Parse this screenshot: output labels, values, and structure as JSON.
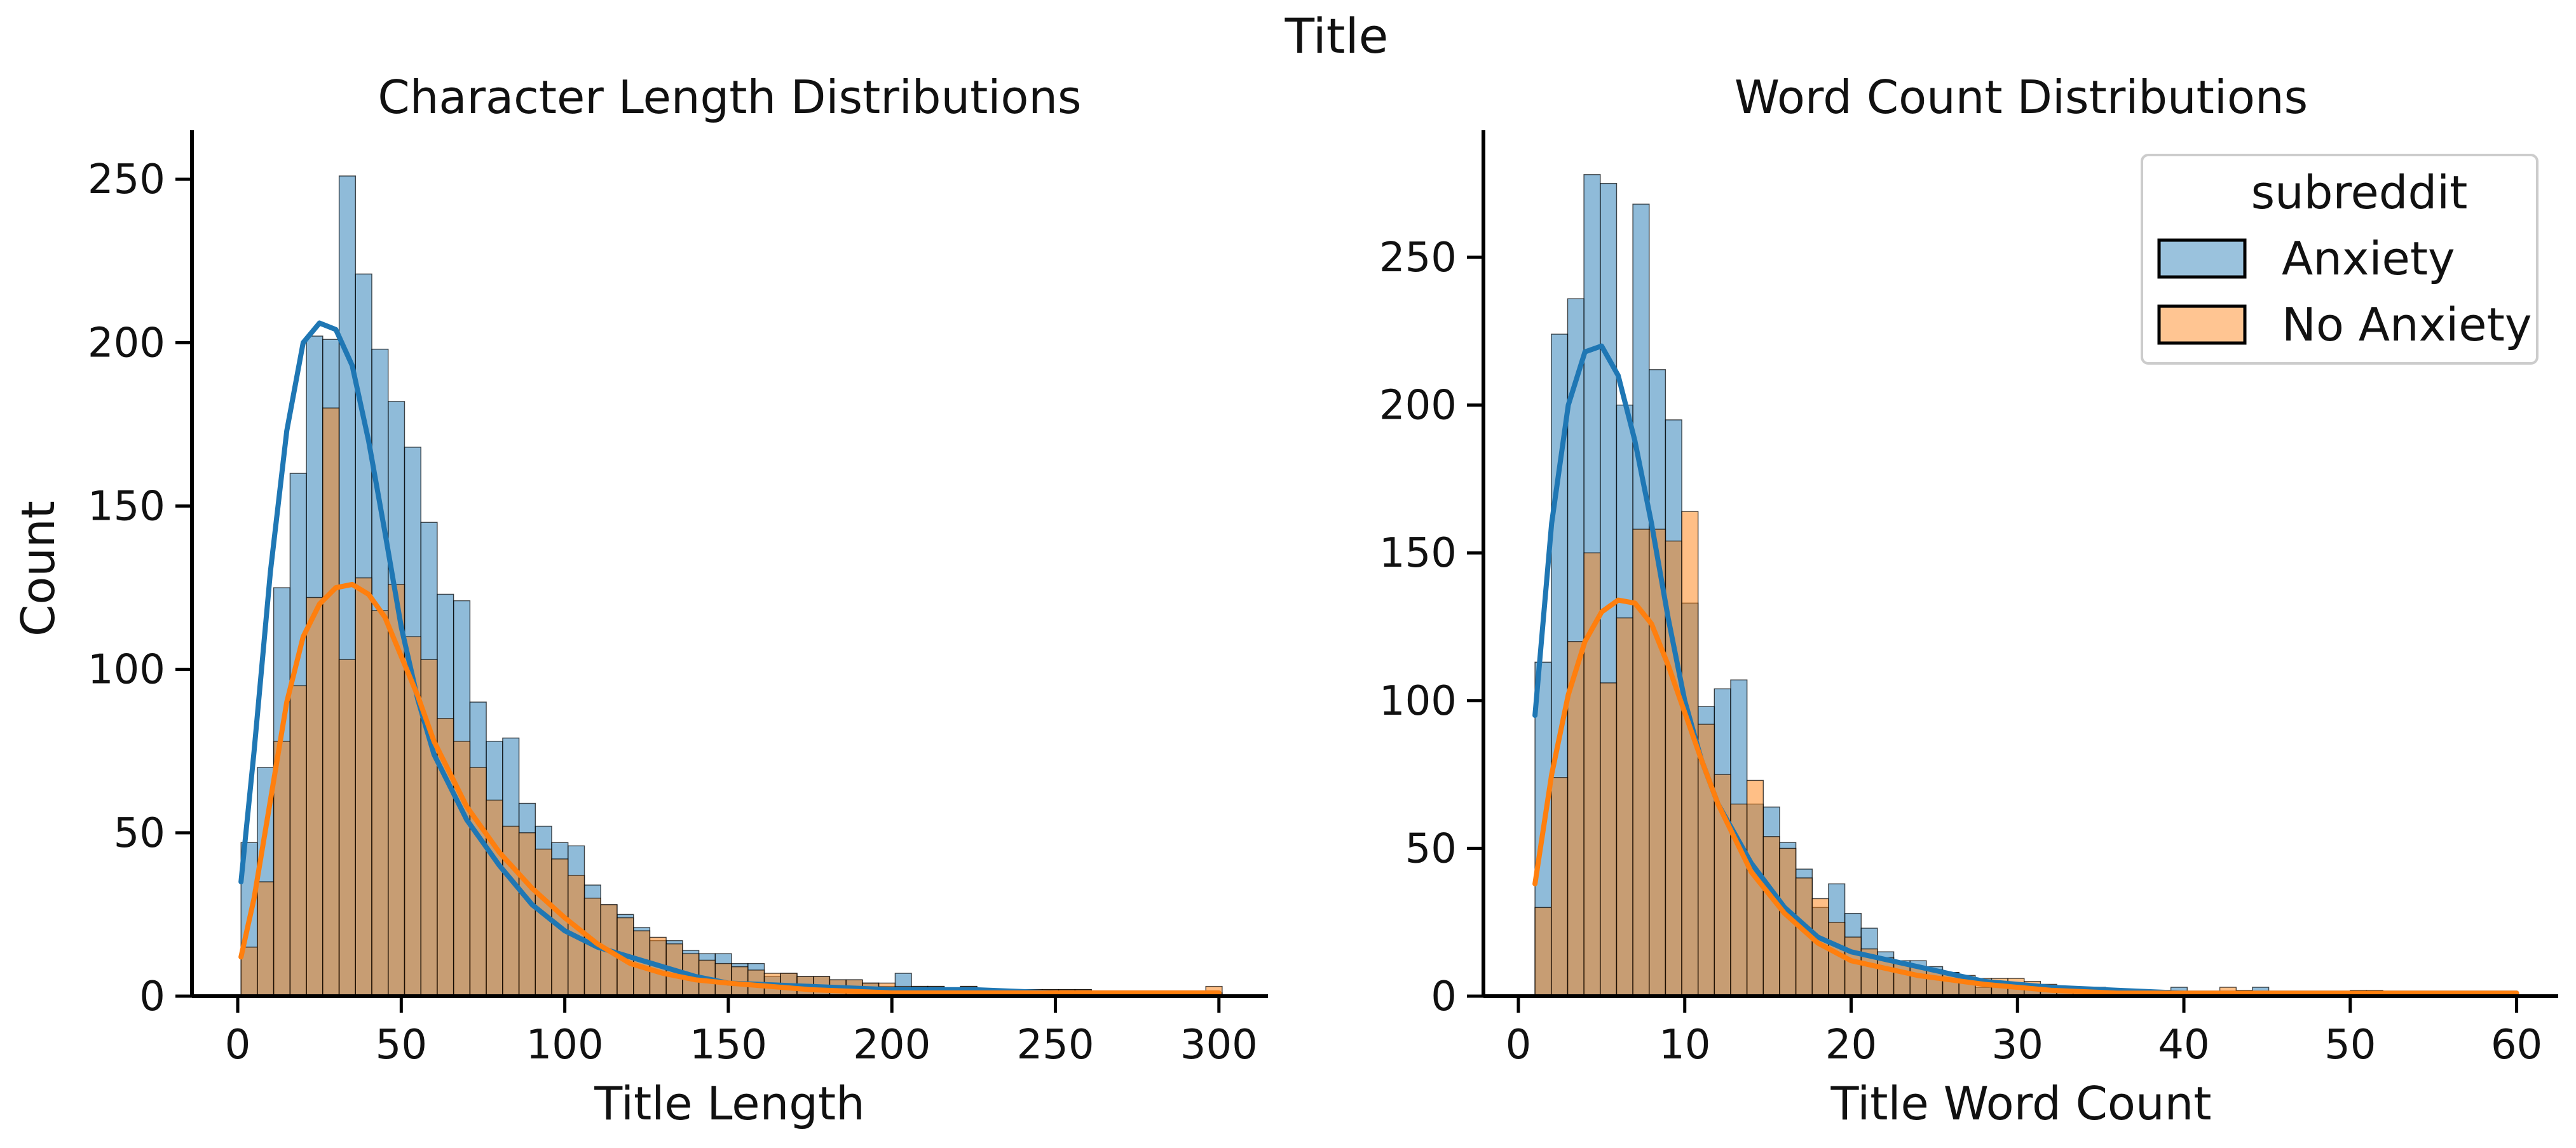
{
  "figure": {
    "suptitle": "Title"
  },
  "colors": {
    "anxiety": "#1f77b4",
    "no_anxiety": "#ff7f0e",
    "overlap": "#7d8b8e"
  },
  "legend": {
    "title": "subreddit",
    "entries": [
      {
        "label": "Anxiety",
        "color": "#1f77b4"
      },
      {
        "label": "No Anxiety",
        "color": "#ff7f0e"
      }
    ],
    "placement": "upper-right of right panel"
  },
  "chart_data": [
    {
      "type": "histogram",
      "title": "Character Length Distributions",
      "xlabel": "Title Length",
      "ylabel": "Count",
      "xlim": [
        -14,
        315
      ],
      "ylim": [
        0,
        265
      ],
      "xticks": [
        0,
        50,
        100,
        150,
        200,
        250,
        300
      ],
      "yticks": [
        0,
        50,
        100,
        150,
        200,
        250
      ],
      "bin_edges_start": 1,
      "bin_width": 5,
      "series": [
        {
          "name": "Anxiety",
          "counts": [
            47,
            70,
            125,
            160,
            202,
            201,
            251,
            221,
            198,
            182,
            168,
            145,
            123,
            121,
            90,
            78,
            79,
            59,
            52,
            47,
            46,
            34,
            28,
            25,
            21,
            17,
            17,
            14,
            13,
            13,
            10,
            10,
            6,
            7,
            6,
            6,
            5,
            5,
            4,
            3,
            7,
            3,
            3,
            2,
            3,
            2,
            2,
            2,
            2,
            2,
            2,
            2,
            1,
            1,
            1,
            1,
            1,
            1,
            1,
            1
          ],
          "kde_x": [
            1,
            5,
            10,
            15,
            20,
            25,
            30,
            35,
            40,
            45,
            50,
            55,
            60,
            70,
            80,
            90,
            100,
            110,
            120,
            130,
            140,
            150,
            175,
            200,
            225,
            250,
            275,
            300
          ],
          "kde_y": [
            35,
            75,
            130,
            173,
            200,
            206,
            204,
            193,
            170,
            142,
            113,
            91,
            74,
            54,
            40,
            28,
            20,
            15,
            12,
            9,
            6,
            4,
            3,
            2,
            2,
            1,
            1,
            1
          ]
        },
        {
          "name": "No Anxiety",
          "counts": [
            15,
            35,
            78,
            95,
            122,
            180,
            103,
            128,
            118,
            126,
            110,
            103,
            85,
            78,
            70,
            60,
            52,
            50,
            45,
            42,
            37,
            30,
            28,
            24,
            20,
            18,
            16,
            13,
            11,
            10,
            9,
            8,
            7,
            7,
            6,
            6,
            5,
            5,
            4,
            4,
            3,
            3,
            3,
            2,
            3,
            2,
            2,
            2,
            2,
            2,
            2,
            2,
            1,
            1,
            1,
            1,
            1,
            1,
            1,
            3
          ],
          "kde_x": [
            1,
            5,
            10,
            15,
            20,
            25,
            30,
            35,
            40,
            45,
            50,
            55,
            60,
            70,
            80,
            90,
            100,
            110,
            120,
            130,
            140,
            150,
            175,
            200,
            225,
            250,
            275,
            300
          ],
          "kde_y": [
            12,
            30,
            60,
            90,
            110,
            120,
            125,
            126,
            123,
            116,
            104,
            92,
            78,
            58,
            44,
            33,
            24,
            16,
            10,
            7,
            5,
            4,
            2,
            1,
            1,
            1,
            1,
            1
          ]
        }
      ]
    },
    {
      "type": "histogram",
      "title": "Word Count Distributions",
      "xlabel": "Title Word Count",
      "ylabel": "",
      "xlim": [
        -2.1,
        62.5
      ],
      "ylim": [
        0,
        293
      ],
      "xticks": [
        0,
        10,
        20,
        30,
        40,
        50,
        60
      ],
      "yticks": [
        0,
        50,
        100,
        150,
        200,
        250
      ],
      "bin_edges_start": 1,
      "bin_width": 0.98,
      "series": [
        {
          "name": "Anxiety",
          "counts": [
            113,
            224,
            236,
            278,
            275,
            200,
            268,
            212,
            195,
            133,
            98,
            104,
            107,
            65,
            64,
            52,
            43,
            30,
            38,
            28,
            23,
            15,
            12,
            12,
            10,
            8,
            5,
            3,
            5,
            4,
            3,
            3,
            2,
            2,
            2,
            2,
            1,
            1,
            1,
            3,
            1,
            1,
            1,
            2,
            3,
            1,
            1,
            1,
            1,
            1,
            2,
            2,
            1,
            1,
            1,
            1,
            1,
            1,
            1
          ],
          "kde_x": [
            1,
            2,
            3,
            4,
            5,
            6,
            7,
            8,
            9,
            10,
            11,
            12,
            14,
            16,
            18,
            20,
            24,
            28,
            32,
            36,
            40,
            45,
            50,
            55,
            60
          ],
          "kde_y": [
            95,
            160,
            200,
            218,
            220,
            210,
            188,
            160,
            128,
            100,
            80,
            65,
            45,
            30,
            20,
            15,
            10,
            5,
            3,
            2,
            1,
            1,
            1,
            1,
            1
          ]
        },
        {
          "name": "No Anxiety",
          "counts": [
            30,
            74,
            120,
            150,
            106,
            128,
            158,
            158,
            154,
            164,
            92,
            75,
            65,
            73,
            54,
            50,
            40,
            33,
            25,
            20,
            16,
            13,
            11,
            10,
            9,
            8,
            7,
            6,
            6,
            6,
            5,
            4,
            3,
            3,
            3,
            2,
            2,
            2,
            2,
            1,
            1,
            1,
            3,
            1,
            1,
            1,
            1,
            1,
            1,
            1,
            1,
            1,
            1,
            1,
            1,
            1,
            1,
            1,
            1
          ],
          "kde_x": [
            1,
            2,
            3,
            4,
            5,
            6,
            7,
            8,
            9,
            10,
            11,
            12,
            14,
            16,
            18,
            20,
            24,
            28,
            32,
            36,
            40,
            45,
            50,
            55,
            60
          ],
          "kde_y": [
            38,
            75,
            102,
            120,
            130,
            134,
            133,
            126,
            112,
            96,
            80,
            65,
            42,
            28,
            18,
            12,
            7,
            4,
            2,
            1,
            1,
            1,
            1,
            1,
            1
          ]
        }
      ]
    }
  ]
}
